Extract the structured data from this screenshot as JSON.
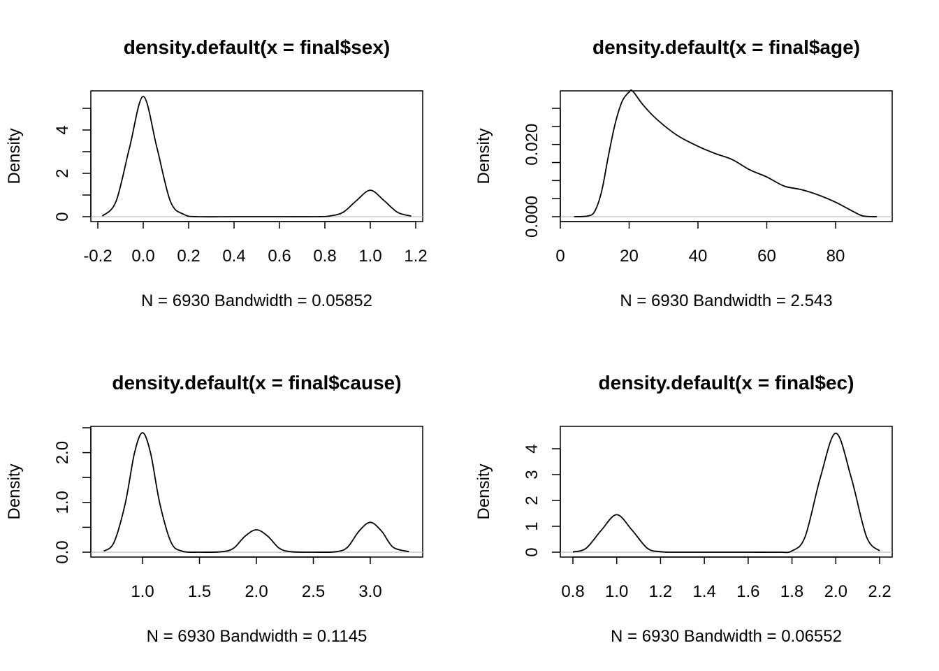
{
  "chart_data": [
    {
      "type": "line",
      "title": "density.default(x = final$sex)",
      "xlabel": "N = 6930   Bandwidth = 0.05852",
      "ylabel": "Density",
      "xlim": [
        -0.2,
        1.2
      ],
      "ylim": [
        0,
        5.6
      ],
      "xticks": [
        -0.2,
        0.0,
        0.2,
        0.4,
        0.6,
        0.8,
        1.0,
        1.2
      ],
      "xtick_labels": [
        "-0.2",
        "0.0",
        "0.2",
        "0.4",
        "0.6",
        "0.8",
        "1.0",
        "1.2"
      ],
      "yticks": [
        0,
        1,
        2,
        3,
        4,
        5
      ],
      "ytick_labels": [
        "0",
        "",
        "2",
        "",
        "4",
        ""
      ],
      "grid": false,
      "baseline": true,
      "x": [
        -0.18,
        -0.12,
        -0.06,
        0.0,
        0.06,
        0.12,
        0.18,
        0.24,
        0.4,
        0.6,
        0.76,
        0.82,
        0.88,
        0.94,
        1.0,
        1.06,
        1.12,
        1.18
      ],
      "y": [
        0.03,
        0.7,
        3.2,
        5.55,
        3.2,
        0.7,
        0.1,
        0.0,
        0.0,
        0.0,
        0.0,
        0.03,
        0.2,
        0.75,
        1.22,
        0.75,
        0.2,
        0.03
      ]
    },
    {
      "type": "line",
      "title": "density.default(x = final$age)",
      "xlabel": "N = 6930   Bandwidth = 2.543",
      "ylabel": "Density",
      "xlim": [
        0,
        92
      ],
      "ylim": [
        0,
        0.036
      ],
      "xticks": [
        0,
        20,
        40,
        60,
        80
      ],
      "xtick_labels": [
        "0",
        "20",
        "40",
        "60",
        "80"
      ],
      "yticks": [
        0,
        0.005,
        0.01,
        0.015,
        0.02,
        0.025,
        0.03
      ],
      "ytick_labels": [
        "0.000",
        "",
        "",
        "",
        "0.020",
        "",
        ""
      ],
      "grid": false,
      "baseline": true,
      "x": [
        4,
        8,
        10,
        12,
        14,
        16,
        18,
        20,
        21,
        24,
        28,
        34,
        40,
        45,
        50,
        55,
        60,
        65,
        70,
        75,
        80,
        85,
        88,
        92
      ],
      "y": [
        0.0,
        0.0002,
        0.0015,
        0.007,
        0.017,
        0.026,
        0.032,
        0.0345,
        0.0348,
        0.031,
        0.027,
        0.0225,
        0.0195,
        0.0175,
        0.0158,
        0.013,
        0.011,
        0.0085,
        0.0075,
        0.006,
        0.004,
        0.0015,
        0.0002,
        0.0
      ]
    },
    {
      "type": "line",
      "title": "density.default(x = final$cause)",
      "xlabel": "N = 6930   Bandwidth = 0.1145",
      "ylabel": "Density",
      "xlim": [
        0.66,
        3.34
      ],
      "ylim": [
        0,
        2.45
      ],
      "xticks": [
        1.0,
        1.5,
        2.0,
        2.5,
        3.0
      ],
      "xtick_labels": [
        "1.0",
        "1.5",
        "2.0",
        "2.5",
        "3.0"
      ],
      "yticks": [
        0,
        0.5,
        1.0,
        1.5,
        2.0,
        2.5
      ],
      "ytick_labels": [
        "0.0",
        "",
        "1.0",
        "",
        "2.0",
        ""
      ],
      "grid": false,
      "baseline": true,
      "x": [
        0.66,
        0.75,
        0.85,
        0.93,
        1.0,
        1.07,
        1.15,
        1.25,
        1.35,
        1.5,
        1.7,
        1.8,
        1.9,
        2.0,
        2.1,
        2.2,
        2.3,
        2.5,
        2.7,
        2.8,
        2.9,
        3.0,
        3.1,
        3.2,
        3.34
      ],
      "y": [
        0.02,
        0.2,
        1.0,
        2.0,
        2.4,
        2.0,
        1.0,
        0.2,
        0.02,
        0.0,
        0.01,
        0.08,
        0.32,
        0.45,
        0.32,
        0.08,
        0.01,
        0.0,
        0.01,
        0.1,
        0.42,
        0.6,
        0.42,
        0.1,
        0.01
      ]
    },
    {
      "type": "line",
      "title": "density.default(x = final$ec)",
      "xlabel": "N = 6930   Bandwidth = 0.06552",
      "ylabel": "Density",
      "xlim": [
        0.8,
        2.2
      ],
      "ylim": [
        0,
        4.6
      ],
      "xticks": [
        0.8,
        1.0,
        1.2,
        1.4,
        1.6,
        1.8,
        2.0,
        2.2
      ],
      "xtick_labels": [
        "0.8",
        "1.0",
        "1.2",
        "1.4",
        "1.6",
        "1.8",
        "2.0",
        "2.2"
      ],
      "yticks": [
        0,
        1,
        2,
        3,
        4
      ],
      "ytick_labels": [
        "0",
        "1",
        "2",
        "3",
        "4"
      ],
      "grid": false,
      "baseline": true,
      "x": [
        0.8,
        0.86,
        0.93,
        1.0,
        1.07,
        1.14,
        1.2,
        1.26,
        1.4,
        1.6,
        1.74,
        1.8,
        1.86,
        1.93,
        2.0,
        2.07,
        2.14,
        2.2
      ],
      "y": [
        0.01,
        0.15,
        0.85,
        1.45,
        0.85,
        0.15,
        0.02,
        0.0,
        0.0,
        0.0,
        0.0,
        0.05,
        0.6,
        2.9,
        4.6,
        2.9,
        0.6,
        0.05
      ]
    }
  ]
}
